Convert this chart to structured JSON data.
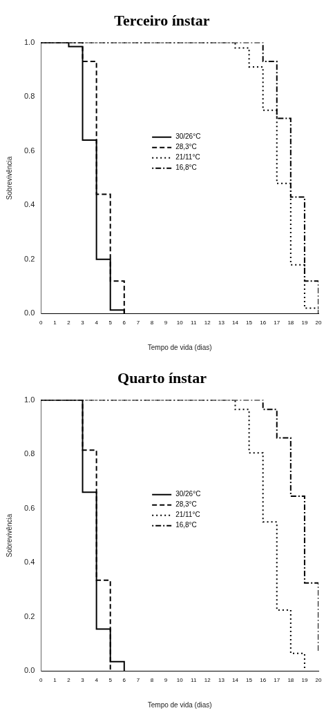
{
  "chart_data": [
    {
      "type": "step",
      "title": "Terceiro ínstar",
      "xlabel": "Tempo de vida (dias)",
      "ylabel": "Sobrevivência",
      "xlim": [
        0,
        20
      ],
      "xticks": [
        0,
        1,
        2,
        3,
        4,
        5,
        6,
        7,
        8,
        9,
        10,
        11,
        12,
        13,
        14,
        15,
        16,
        17,
        18,
        19,
        20
      ],
      "ylim": [
        0,
        1
      ],
      "yticks": [
        {
          "value": 0,
          "label": "0.0"
        },
        {
          "value": 0.2,
          "label": "0.2"
        },
        {
          "value": 0.4,
          "label": "0.4"
        },
        {
          "value": 0.6,
          "label": "0.6"
        },
        {
          "value": 0.8,
          "label": "0.8"
        },
        {
          "value": 1,
          "label": "1.0"
        }
      ],
      "grid": false,
      "legend": "center",
      "marker": "none",
      "series": [
        {
          "name": "30/26°C",
          "color": "#000000",
          "line_style": "solid",
          "x": [
            0,
            2,
            3,
            4,
            5,
            6
          ],
          "values": [
            1,
            0.985,
            0.64,
            0.2,
            0.013,
            0
          ]
        },
        {
          "name": "28,3°C",
          "color": "#000000",
          "line_style": "dashed",
          "x": [
            0,
            3,
            4,
            5,
            6
          ],
          "values": [
            1,
            0.93,
            0.44,
            0.12,
            0
          ]
        },
        {
          "name": "21/11°C",
          "color": "#000000",
          "line_style": "dotted",
          "x": [
            0,
            14,
            15,
            16,
            17,
            18,
            19,
            20
          ],
          "values": [
            1,
            0.98,
            0.91,
            0.75,
            0.48,
            0.18,
            0.02,
            0
          ]
        },
        {
          "name": "16,8°C",
          "color": "#000000",
          "line_style": "dashdot",
          "x": [
            0,
            16,
            17,
            18,
            19,
            20
          ],
          "values": [
            1,
            0.93,
            0.72,
            0.43,
            0.12,
            0
          ]
        }
      ]
    },
    {
      "type": "step",
      "title": "Quarto ínstar",
      "xlabel": "Tempo de vida (dias)",
      "ylabel": "Sobrevivência",
      "xlim": [
        0,
        20
      ],
      "xticks": [
        0,
        1,
        2,
        3,
        4,
        5,
        6,
        7,
        8,
        9,
        10,
        11,
        12,
        13,
        14,
        15,
        16,
        17,
        18,
        19,
        20
      ],
      "ylim": [
        0,
        1
      ],
      "yticks": [
        {
          "value": 0,
          "label": "0.0"
        },
        {
          "value": 0.2,
          "label": "0.2"
        },
        {
          "value": 0.4,
          "label": "0.4"
        },
        {
          "value": 0.6,
          "label": "0.6"
        },
        {
          "value": 0.8,
          "label": "0.8"
        },
        {
          "value": 1,
          "label": "1.0"
        }
      ],
      "grid": false,
      "legend": "center",
      "marker": "none",
      "series": [
        {
          "name": "30/26°C",
          "color": "#000000",
          "line_style": "solid",
          "x": [
            0,
            3,
            4,
            5,
            6
          ],
          "values": [
            1,
            0.66,
            0.155,
            0.035,
            0
          ]
        },
        {
          "name": "28,3°C",
          "color": "#000000",
          "line_style": "dashed",
          "x": [
            0,
            3,
            4,
            5
          ],
          "values": [
            1,
            0.815,
            0.335,
            0
          ]
        },
        {
          "name": "21/11°C",
          "color": "#000000",
          "line_style": "dotted",
          "x": [
            0,
            14,
            15,
            16,
            17,
            18,
            19
          ],
          "values": [
            1,
            0.965,
            0.805,
            0.55,
            0.225,
            0.065,
            0
          ]
        },
        {
          "name": "16,8°C",
          "color": "#000000",
          "line_style": "dashdot",
          "x": [
            0,
            16,
            17,
            18,
            19,
            20
          ],
          "values": [
            1,
            0.965,
            0.86,
            0.645,
            0.325,
            0.07
          ]
        }
      ]
    }
  ]
}
